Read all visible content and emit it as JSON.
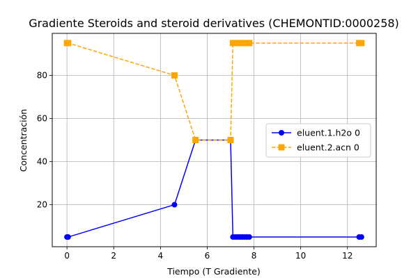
{
  "chart_data": {
    "type": "line",
    "title": "Gradiente Steroids and steroid derivatives (CHEMONTID:0000258)",
    "xlabel": "Tiempo (T Gradiente)",
    "ylabel": "Concentración",
    "xlim": [
      -0.63,
      13.23
    ],
    "ylim": [
      0.5,
      99.5
    ],
    "xticks": [
      0,
      2,
      4,
      6,
      8,
      10,
      12
    ],
    "yticks": [
      20,
      40,
      60,
      80
    ],
    "grid": true,
    "legend_position": "center-right",
    "series": [
      {
        "name": "eluent.1.h2o 0",
        "color": "#0000ff",
        "line_style": "solid",
        "marker": "circle",
        "x": [
          0,
          0.05,
          4.6,
          5.5,
          7.0,
          7.1,
          7.2,
          7.3,
          7.4,
          7.5,
          7.6,
          7.7,
          7.8,
          12.5,
          12.6
        ],
        "y": [
          5,
          5,
          20,
          50,
          50,
          5,
          5,
          5,
          5,
          5,
          5,
          5,
          5,
          5,
          5
        ]
      },
      {
        "name": "eluent.2.acn 0",
        "color": "#ffa500",
        "line_style": "dashed",
        "marker": "square",
        "x": [
          0,
          0.05,
          4.6,
          5.5,
          7.0,
          7.1,
          7.2,
          7.3,
          7.4,
          7.5,
          7.6,
          7.7,
          7.8,
          12.5,
          12.6
        ],
        "y": [
          95,
          95,
          80,
          50,
          50,
          95,
          95,
          95,
          95,
          95,
          95,
          95,
          95,
          95,
          95
        ]
      }
    ]
  }
}
